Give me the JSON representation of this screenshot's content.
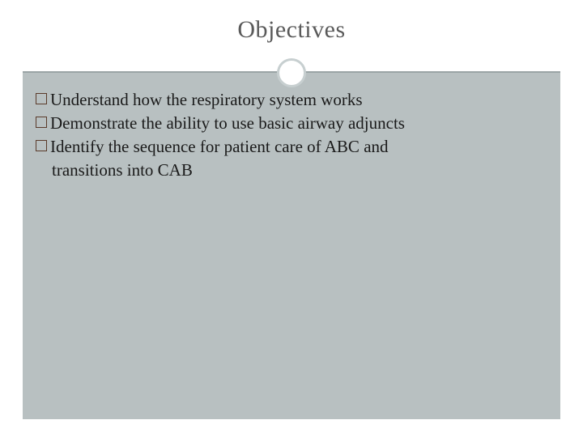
{
  "slide": {
    "title": "Objectives",
    "title_color": "#5a5a5a",
    "title_fontsize": 30,
    "background_color": "#ffffff",
    "content_background": "#b8c0c1",
    "divider_color": "#9aa4a5",
    "circle_border_color": "#c7cfd0",
    "bullet_marker_border": "#5a3a2a",
    "body_fontsize": 21,
    "body_color": "#1a1a1a",
    "bullets": [
      {
        "text": "Understand how the respiratory system works"
      },
      {
        "text": "Demonstrate the ability to use basic airway adjuncts"
      },
      {
        "text": "Identify the sequence for patient care of ABC and",
        "cont": "transitions into CAB"
      }
    ]
  }
}
